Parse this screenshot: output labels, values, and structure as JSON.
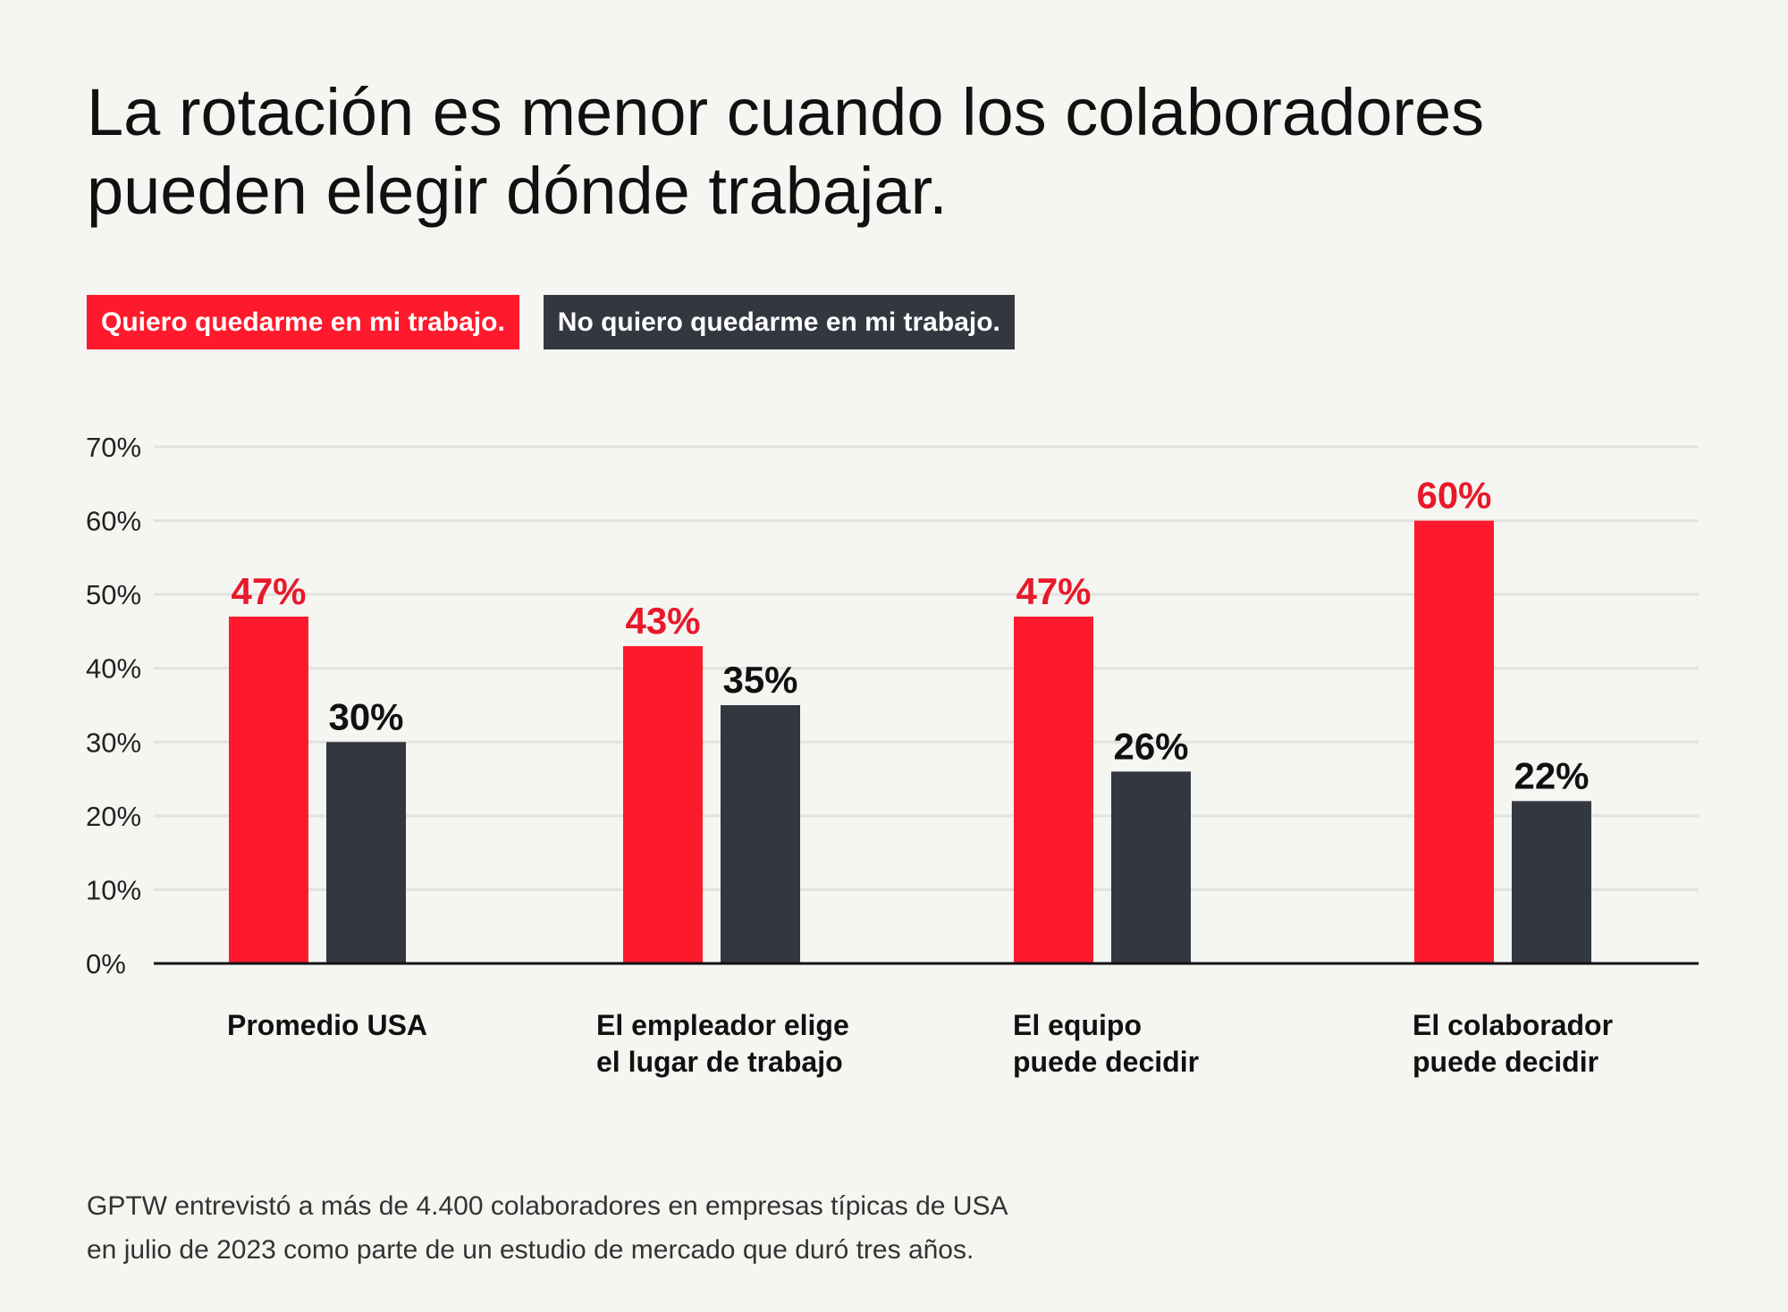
{
  "title": {
    "line1": "La rotación es menor cuando los colaboradores",
    "line2": "pueden elegir dónde trabajar."
  },
  "legend": [
    {
      "label": "Quiero quedarme en mi trabajo.",
      "color": "#fe1a2c"
    },
    {
      "label": "No quiero quedarme en mi trabajo.",
      "color": "#333740"
    }
  ],
  "categories": [
    {
      "lines": [
        "Promedio USA"
      ]
    },
    {
      "lines": [
        "El empleador elige",
        "el lugar de trabajo"
      ]
    },
    {
      "lines": [
        "El equipo",
        "puede decidir"
      ]
    },
    {
      "lines": [
        "El colaborador",
        "puede decidir"
      ]
    }
  ],
  "footnote": {
    "line1": "GPTW entrevistó a más de 4.400 colaboradores en empresas típicas de USA",
    "line2": "en julio de 2023 como parte de un estudio de mercado que duró tres años."
  },
  "chart_data": {
    "type": "bar",
    "title": "La rotación es menor cuando los colaboradores pueden elegir dónde trabajar.",
    "categories": [
      "Promedio USA",
      "El empleador elige el lugar de trabajo",
      "El equipo puede decidir",
      "El colaborador puede decidir"
    ],
    "series": [
      {
        "name": "Quiero quedarme en mi trabajo.",
        "values": [
          47,
          43,
          47,
          60
        ],
        "color": "#fe1a2c",
        "label_color": "#e8192c"
      },
      {
        "name": "No quiero quedarme en mi trabajo.",
        "values": [
          30,
          35,
          26,
          22
        ],
        "color": "#333740",
        "label_color": "#111111"
      }
    ],
    "value_labels": [
      [
        "47%",
        "43%",
        "47%",
        "60%"
      ],
      [
        "30%",
        "35%",
        "26%",
        "22%"
      ]
    ],
    "yticks": [
      "0%",
      "10%",
      "20%",
      "30%",
      "40%",
      "50%",
      "60%",
      "70%"
    ],
    "ylim": [
      0,
      70
    ],
    "grid": true,
    "legend_position": "top-left"
  }
}
